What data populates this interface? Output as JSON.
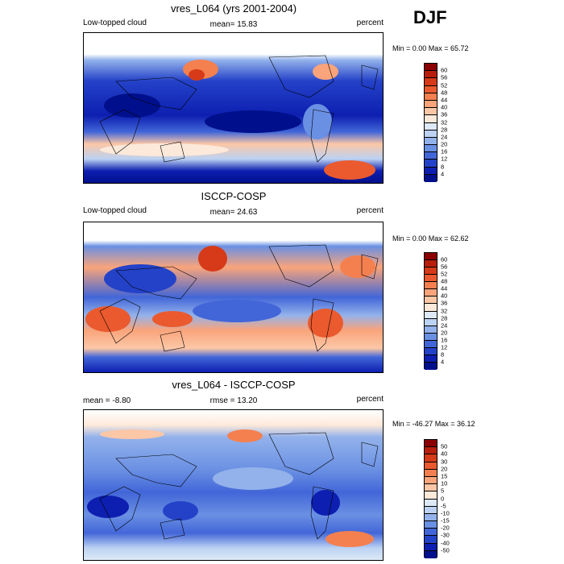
{
  "season": "DJF",
  "panels": [
    {
      "title": "vres_L064 (yrs 2001-2004)",
      "left_label": "Low-topped cloud",
      "center_label": "mean=  15.83",
      "right_label": "percent",
      "minmax": "Min =   0.00 Max =  65.72",
      "legend_ticks": [
        "60",
        "56",
        "52",
        "48",
        "44",
        "40",
        "36",
        "32",
        "28",
        "24",
        "20",
        "16",
        "12",
        "8",
        "4"
      ],
      "colors": [
        "#8b0000",
        "#b81e0c",
        "#d63a18",
        "#ea5a2e",
        "#f4804f",
        "#f9a47a",
        "#fcc7a6",
        "#fde9d9",
        "#dde9f7",
        "#bcd2f2",
        "#93b2eb",
        "#6a90e3",
        "#4266d8",
        "#2442c8",
        "#0d1fb0",
        "#00108c"
      ]
    },
    {
      "title": "ISCCP-COSP",
      "left_label": "Low-topped cloud",
      "center_label": "mean=  24.63",
      "right_label": "percent",
      "minmax": "Min =   0.00 Max =  62.62",
      "legend_ticks": [
        "60",
        "56",
        "52",
        "48",
        "44",
        "40",
        "36",
        "32",
        "28",
        "24",
        "20",
        "16",
        "12",
        "8",
        "4"
      ],
      "colors": [
        "#8b0000",
        "#b81e0c",
        "#d63a18",
        "#ea5a2e",
        "#f4804f",
        "#f9a47a",
        "#fcc7a6",
        "#fde9d9",
        "#dde9f7",
        "#bcd2f2",
        "#93b2eb",
        "#6a90e3",
        "#4266d8",
        "#2442c8",
        "#0d1fb0",
        "#00108c"
      ]
    },
    {
      "title": "vres_L064 - ISCCP-COSP",
      "left_label": "mean =  -8.80",
      "center_label": "rmse =  13.20",
      "right_label": "percent",
      "minmax": "Min = -46.27 Max =  36.12",
      "legend_ticks": [
        "50",
        "40",
        "30",
        "20",
        "15",
        "10",
        "5",
        "0",
        "-5",
        "-10",
        "-15",
        "-20",
        "-30",
        "-40",
        "-50"
      ],
      "colors": [
        "#8b0000",
        "#b81e0c",
        "#d63a18",
        "#ea5a2e",
        "#f4804f",
        "#f9a47a",
        "#fcc7a6",
        "#fde9d9",
        "#dde9f7",
        "#bcd2f2",
        "#93b2eb",
        "#6a90e3",
        "#4266d8",
        "#2442c8",
        "#0d1fb0",
        "#00108c"
      ]
    }
  ]
}
